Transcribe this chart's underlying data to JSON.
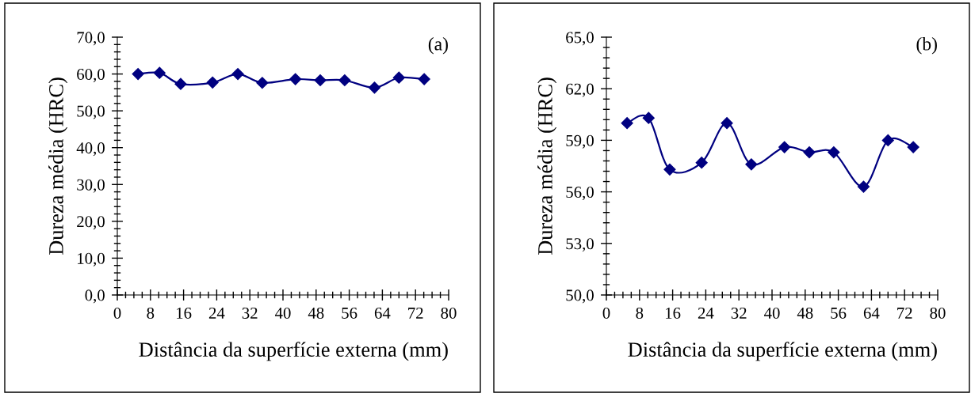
{
  "chart_data": [
    {
      "type": "line",
      "xlabel": "Distância da superfície externa (mm)",
      "ylabel": "Dureza média (HRC)",
      "annotations": [
        "(a)"
      ],
      "marker": "diamond",
      "line_style": "solid",
      "grid": false,
      "legend": false,
      "x": [
        5.0,
        10.2,
        15.3,
        23.0,
        29.1,
        35.0,
        43.0,
        49.0,
        54.9,
        62.1,
        68.0,
        74.1
      ],
      "series": [
        {
          "color": "#000080",
          "values": [
            60.0,
            60.3,
            57.3,
            57.7,
            60.0,
            57.6,
            58.6,
            58.3,
            58.3,
            56.3,
            59.0,
            58.6
          ]
        }
      ],
      "xlim": [
        0,
        80
      ],
      "xticks": [
        0,
        8,
        16,
        24,
        32,
        40,
        48,
        56,
        64,
        72,
        80
      ],
      "ylim": [
        0,
        70
      ],
      "yticks": [
        {
          "value": 0,
          "label": "0,0"
        },
        {
          "value": 10,
          "label": "10,0"
        },
        {
          "value": 20,
          "label": "20,0"
        },
        {
          "value": 30,
          "label": "30,0"
        },
        {
          "value": 40,
          "label": "40,0"
        },
        {
          "value": 50,
          "label": "50,0"
        },
        {
          "value": 60,
          "label": "60,0"
        },
        {
          "value": 70,
          "label": "70,0"
        }
      ]
    },
    {
      "type": "line",
      "xlabel": "Distância da superfície externa (mm)",
      "ylabel": "Dureza média (HRC)",
      "annotations": [
        "(b)"
      ],
      "marker": "diamond",
      "line_style": "solid",
      "grid": false,
      "legend": false,
      "x": [
        5.0,
        10.2,
        15.3,
        23.0,
        29.1,
        35.0,
        43.0,
        49.0,
        54.9,
        62.1,
        68.0,
        74.1
      ],
      "series": [
        {
          "color": "#000080",
          "values": [
            60.0,
            60.3,
            57.3,
            57.7,
            60.0,
            57.6,
            58.6,
            58.3,
            58.3,
            56.3,
            59.0,
            58.6
          ]
        }
      ],
      "xlim": [
        0,
        80
      ],
      "xticks": [
        0,
        8,
        16,
        24,
        32,
        40,
        48,
        56,
        64,
        72,
        80
      ],
      "ylim": [
        50,
        65
      ],
      "yticks": [
        {
          "value": 50,
          "label": "50,0"
        },
        {
          "value": 53,
          "label": "53,0"
        },
        {
          "value": 56,
          "label": "56,0"
        },
        {
          "value": 59,
          "label": "59,0"
        },
        {
          "value": 62,
          "label": "62,0"
        },
        {
          "value": 65,
          "label": "65,0"
        }
      ]
    }
  ]
}
